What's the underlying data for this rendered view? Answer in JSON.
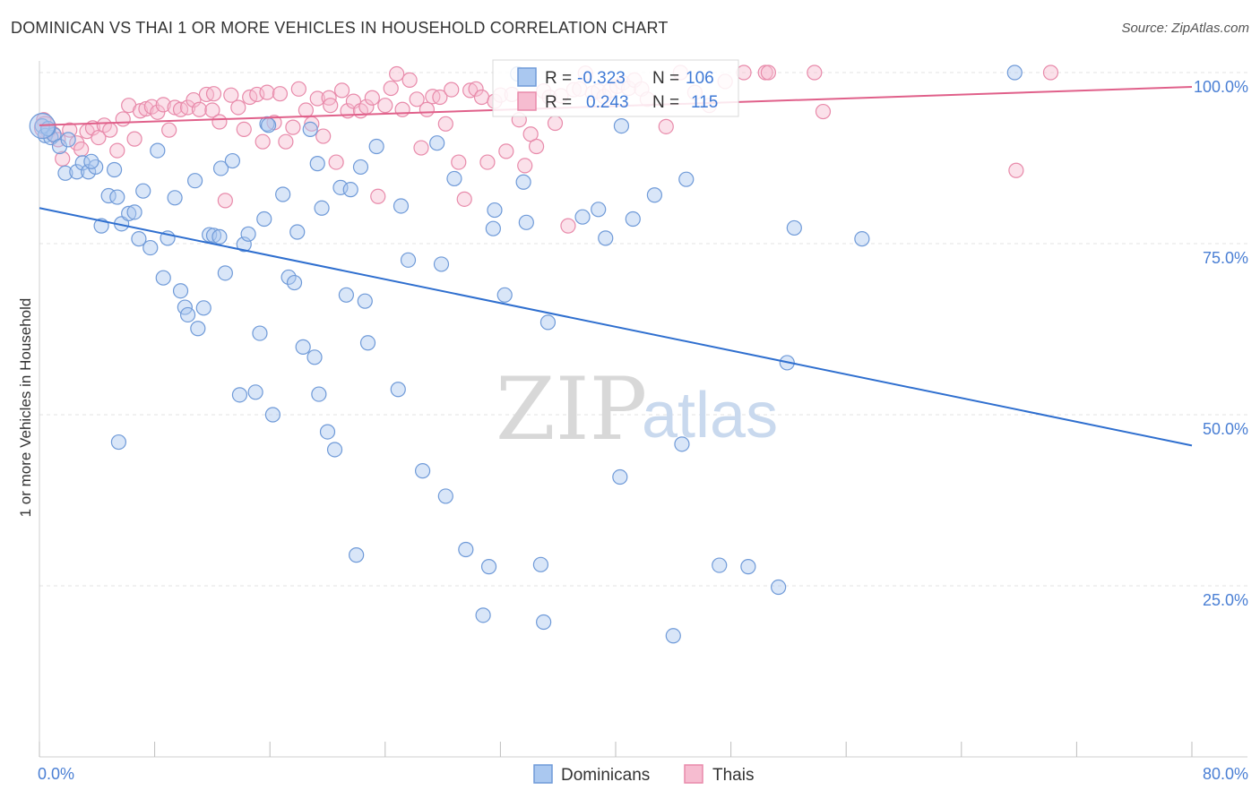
{
  "title": "DOMINICAN VS THAI 1 OR MORE VEHICLES IN HOUSEHOLD CORRELATION CHART",
  "source": "Source: ZipAtlas.com",
  "watermark": {
    "zip": "ZIP",
    "atlas": "atlas"
  },
  "colors": {
    "blue_fill": "#aac8f0",
    "blue_stroke": "#6f9ad8",
    "blue_line": "#2f6fcf",
    "pink_fill": "#f6bcd0",
    "pink_stroke": "#e88aaa",
    "pink_line": "#e0608a",
    "tick_text": "#4a7fd4",
    "grid": "#e3e3e3"
  },
  "stats_box": {
    "rows": [
      {
        "r_label": "R =",
        "r_value": "-0.323",
        "n_label": "N =",
        "n_value": "106"
      },
      {
        "r_label": "R =",
        "r_value": "0.243",
        "n_label": "N =",
        "n_value": "115"
      }
    ]
  },
  "legend": [
    "Dominicans",
    "Thais"
  ],
  "chart_data": {
    "type": "scatter",
    "title": "DOMINICAN VS THAI 1 OR MORE VEHICLES IN HOUSEHOLD CORRELATION CHART",
    "xlabel": "",
    "ylabel": "1 or more Vehicles in Household",
    "xlim": [
      0,
      80
    ],
    "ylim": [
      0,
      105
    ],
    "x_tick_labels": [
      "0.0%",
      "80.0%"
    ],
    "y_ticks": [
      25,
      50,
      75,
      100
    ],
    "y_tick_labels": [
      "25.0%",
      "50.0%",
      "75.0%",
      "100.0%"
    ],
    "grid": true,
    "legend_position": "bottom",
    "series": [
      {
        "name": "Dominicans",
        "r": -0.323,
        "n": 106,
        "trend": {
          "x": [
            0,
            80
          ],
          "y": [
            80.2,
            45.5
          ]
        },
        "points": [
          [
            0.2,
            92.2
          ],
          [
            0.4,
            90.8
          ],
          [
            0.8,
            90.5
          ],
          [
            1.0,
            90.9
          ],
          [
            1.4,
            89.2
          ],
          [
            1.8,
            85.3
          ],
          [
            2.0,
            90.2
          ],
          [
            2.6,
            85.5
          ],
          [
            3.0,
            86.8
          ],
          [
            3.4,
            85.5
          ],
          [
            3.9,
            86.2
          ],
          [
            4.3,
            77.6
          ],
          [
            4.8,
            82.0
          ],
          [
            5.2,
            85.8
          ],
          [
            5.4,
            81.8
          ],
          [
            5.7,
            77.9
          ],
          [
            6.2,
            79.4
          ],
          [
            6.6,
            79.6
          ],
          [
            6.9,
            75.7
          ],
          [
            7.2,
            82.7
          ],
          [
            7.7,
            74.4
          ],
          [
            8.2,
            88.6
          ],
          [
            8.6,
            70.0
          ],
          [
            8.9,
            75.8
          ],
          [
            9.4,
            81.7
          ],
          [
            9.8,
            68.1
          ],
          [
            10.1,
            65.7
          ],
          [
            10.3,
            64.6
          ],
          [
            10.8,
            84.2
          ],
          [
            11.0,
            62.6
          ],
          [
            11.4,
            65.6
          ],
          [
            11.8,
            76.3
          ],
          [
            12.1,
            76.2
          ],
          [
            12.6,
            86.0
          ],
          [
            12.9,
            70.7
          ],
          [
            13.4,
            87.1
          ],
          [
            13.9,
            52.9
          ],
          [
            14.2,
            74.9
          ],
          [
            14.5,
            76.4
          ],
          [
            15.0,
            53.3
          ],
          [
            15.3,
            61.9
          ],
          [
            15.6,
            78.6
          ],
          [
            15.8,
            92.5
          ],
          [
            16.2,
            50.0
          ],
          [
            16.9,
            82.2
          ],
          [
            17.3,
            70.1
          ],
          [
            17.7,
            69.3
          ],
          [
            17.9,
            76.7
          ],
          [
            18.3,
            59.9
          ],
          [
            18.8,
            91.7
          ],
          [
            19.1,
            58.4
          ],
          [
            19.3,
            86.7
          ],
          [
            19.6,
            80.2
          ],
          [
            20.0,
            47.5
          ],
          [
            20.5,
            44.9
          ],
          [
            20.9,
            83.2
          ],
          [
            21.3,
            67.5
          ],
          [
            21.6,
            82.9
          ],
          [
            22.0,
            29.5
          ],
          [
            22.3,
            86.2
          ],
          [
            22.6,
            66.6
          ],
          [
            22.8,
            60.5
          ],
          [
            23.4,
            89.2
          ],
          [
            24.9,
            53.7
          ],
          [
            25.1,
            80.5
          ],
          [
            25.6,
            72.6
          ],
          [
            26.6,
            41.8
          ],
          [
            27.6,
            89.7
          ],
          [
            27.9,
            72.0
          ],
          [
            28.2,
            38.1
          ],
          [
            28.8,
            84.5
          ],
          [
            29.6,
            30.3
          ],
          [
            30.8,
            20.7
          ],
          [
            31.2,
            27.8
          ],
          [
            31.5,
            77.2
          ],
          [
            31.6,
            79.9
          ],
          [
            32.3,
            67.5
          ],
          [
            33.2,
            99.8
          ],
          [
            33.6,
            84.0
          ],
          [
            33.8,
            78.1
          ],
          [
            34.8,
            28.1
          ],
          [
            35.0,
            19.7
          ],
          [
            35.3,
            63.5
          ],
          [
            37.7,
            78.9
          ],
          [
            38.8,
            80.0
          ],
          [
            39.3,
            75.8
          ],
          [
            40.4,
            92.2
          ],
          [
            40.3,
            40.9
          ],
          [
            41.2,
            78.6
          ],
          [
            42.7,
            82.1
          ],
          [
            44.0,
            17.7
          ],
          [
            44.6,
            45.7
          ],
          [
            44.9,
            84.4
          ],
          [
            47.2,
            28.0
          ],
          [
            49.2,
            27.8
          ],
          [
            51.3,
            24.8
          ],
          [
            51.9,
            57.6
          ],
          [
            52.4,
            77.3
          ],
          [
            57.1,
            75.7
          ],
          [
            67.7,
            100.0
          ],
          [
            0.6,
            91.8
          ],
          [
            3.6,
            87.0
          ],
          [
            12.5,
            76.0
          ],
          [
            5.5,
            46.0
          ],
          [
            15.9,
            92.3
          ],
          [
            19.4,
            53.0
          ]
        ]
      },
      {
        "name": "Thais",
        "r": 0.243,
        "n": 115,
        "trend": {
          "x": [
            0,
            80
          ],
          "y": [
            92.3,
            97.9
          ]
        },
        "points": [
          [
            0.3,
            93.1
          ],
          [
            0.6,
            91.4
          ],
          [
            1.0,
            91.0
          ],
          [
            1.3,
            90.2
          ],
          [
            1.6,
            87.4
          ],
          [
            2.1,
            91.6
          ],
          [
            2.6,
            89.7
          ],
          [
            2.9,
            88.8
          ],
          [
            3.3,
            91.4
          ],
          [
            3.7,
            91.9
          ],
          [
            4.1,
            90.5
          ],
          [
            4.5,
            92.3
          ],
          [
            4.9,
            91.6
          ],
          [
            5.4,
            88.6
          ],
          [
            5.8,
            93.2
          ],
          [
            6.2,
            95.2
          ],
          [
            6.6,
            90.3
          ],
          [
            7.0,
            94.4
          ],
          [
            7.4,
            94.7
          ],
          [
            7.8,
            95.0
          ],
          [
            8.2,
            94.2
          ],
          [
            8.6,
            95.3
          ],
          [
            9.0,
            91.6
          ],
          [
            9.4,
            94.9
          ],
          [
            9.8,
            94.6
          ],
          [
            10.3,
            94.9
          ],
          [
            10.7,
            96.0
          ],
          [
            11.1,
            94.6
          ],
          [
            11.6,
            96.8
          ],
          [
            12.0,
            94.5
          ],
          [
            12.5,
            92.8
          ],
          [
            12.9,
            81.3
          ],
          [
            13.3,
            96.7
          ],
          [
            13.8,
            94.9
          ],
          [
            14.2,
            91.7
          ],
          [
            14.6,
            96.4
          ],
          [
            15.1,
            96.8
          ],
          [
            15.5,
            89.9
          ],
          [
            15.8,
            97.1
          ],
          [
            16.3,
            92.7
          ],
          [
            16.7,
            96.9
          ],
          [
            17.1,
            89.9
          ],
          [
            17.6,
            92.0
          ],
          [
            18.0,
            97.6
          ],
          [
            18.5,
            94.5
          ],
          [
            18.9,
            92.5
          ],
          [
            19.3,
            96.2
          ],
          [
            19.7,
            90.7
          ],
          [
            20.1,
            96.3
          ],
          [
            20.6,
            86.9
          ],
          [
            21.0,
            97.4
          ],
          [
            21.4,
            94.4
          ],
          [
            21.8,
            95.8
          ],
          [
            22.3,
            94.4
          ],
          [
            22.7,
            95.0
          ],
          [
            23.1,
            96.3
          ],
          [
            23.5,
            81.9
          ],
          [
            24.0,
            95.2
          ],
          [
            24.4,
            97.7
          ],
          [
            24.8,
            99.8
          ],
          [
            25.2,
            94.6
          ],
          [
            25.7,
            98.9
          ],
          [
            26.5,
            89.0
          ],
          [
            26.9,
            94.6
          ],
          [
            27.3,
            96.5
          ],
          [
            27.8,
            96.4
          ],
          [
            28.2,
            92.5
          ],
          [
            28.6,
            97.5
          ],
          [
            29.1,
            86.9
          ],
          [
            29.5,
            81.5
          ],
          [
            29.9,
            97.4
          ],
          [
            30.3,
            97.6
          ],
          [
            30.7,
            96.4
          ],
          [
            31.1,
            86.9
          ],
          [
            31.6,
            95.8
          ],
          [
            32.0,
            96.7
          ],
          [
            32.4,
            88.5
          ],
          [
            32.8,
            96.8
          ],
          [
            33.3,
            93.1
          ],
          [
            33.7,
            86.4
          ],
          [
            34.1,
            91.0
          ],
          [
            34.5,
            89.2
          ],
          [
            35.0,
            97.3
          ],
          [
            35.4,
            96.4
          ],
          [
            35.8,
            92.6
          ],
          [
            36.2,
            96.6
          ],
          [
            36.7,
            77.6
          ],
          [
            37.1,
            97.5
          ],
          [
            37.5,
            97.6
          ],
          [
            37.9,
            99.9
          ],
          [
            38.4,
            97.0
          ],
          [
            38.8,
            97.3
          ],
          [
            39.2,
            96.5
          ],
          [
            39.6,
            97.4
          ],
          [
            40.1,
            98.0
          ],
          [
            40.5,
            98.5
          ],
          [
            40.9,
            97.7
          ],
          [
            41.3,
            98.9
          ],
          [
            41.8,
            97.6
          ],
          [
            42.2,
            96.1
          ],
          [
            43.5,
            92.1
          ],
          [
            44.5,
            100.0
          ],
          [
            45.5,
            97.1
          ],
          [
            46.5,
            95.2
          ],
          [
            47.6,
            98.7
          ],
          [
            48.9,
            100.0
          ],
          [
            50.4,
            100.0
          ],
          [
            50.6,
            100.0
          ],
          [
            53.8,
            100.0
          ],
          [
            54.4,
            94.3
          ],
          [
            67.8,
            85.7
          ],
          [
            70.2,
            100.0
          ],
          [
            20.2,
            95.2
          ],
          [
            12.1,
            96.9
          ],
          [
            26.2,
            96.1
          ]
        ]
      }
    ]
  }
}
